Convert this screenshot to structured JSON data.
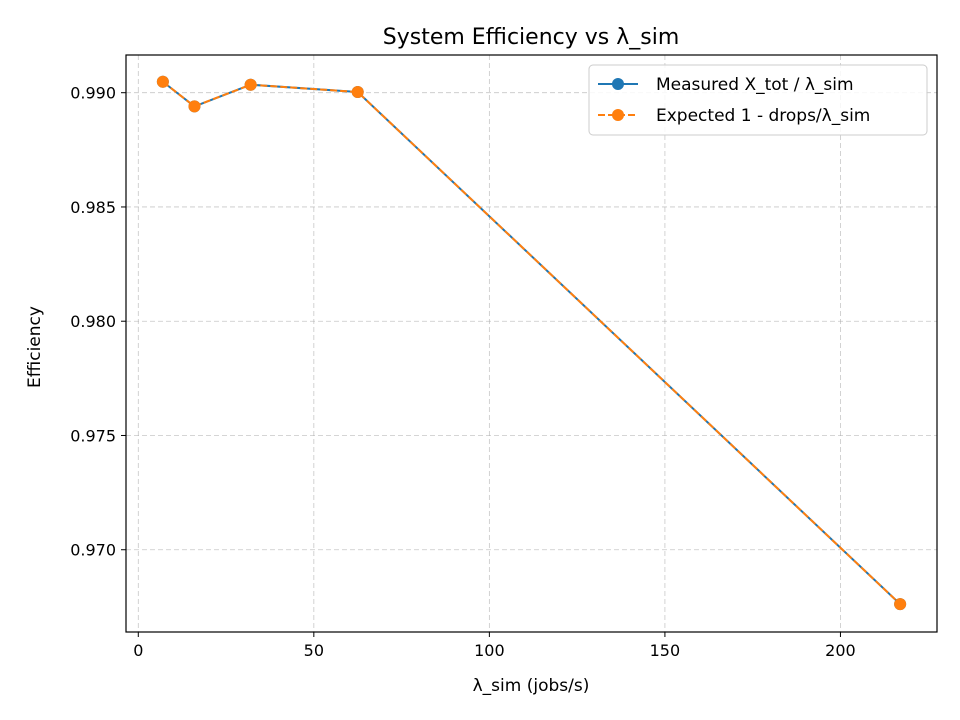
{
  "chart_data": {
    "type": "line",
    "title": "System Efficiency vs λ_sim",
    "xlabel": "λ_sim (jobs/s)",
    "ylabel": "Efficiency",
    "xlim": [
      -3.5,
      227.5
    ],
    "ylim": [
      0.9664,
      0.99165
    ],
    "xticks": [
      0,
      50,
      100,
      150,
      200
    ],
    "yticks": [
      0.97,
      0.975,
      0.98,
      0.985,
      0.99
    ],
    "ytick_labels": [
      "0.970",
      "0.975",
      "0.980",
      "0.985",
      "0.990"
    ],
    "grid": true,
    "legend_position": "top-right",
    "series": [
      {
        "name": "Measured X_tot / λ_sim",
        "color": "#1f77b4",
        "style": "solid",
        "x": [
          7,
          16,
          32,
          62.5,
          217
        ],
        "y": [
          0.99048,
          0.9894,
          0.99035,
          0.99003,
          0.96762
        ]
      },
      {
        "name": "Expected 1 - drops/λ_sim",
        "color": "#ff7f0e",
        "style": "dashed",
        "x": [
          7,
          16,
          32,
          62.5,
          217
        ],
        "y": [
          0.99048,
          0.9894,
          0.99035,
          0.99003,
          0.96762
        ]
      }
    ]
  }
}
